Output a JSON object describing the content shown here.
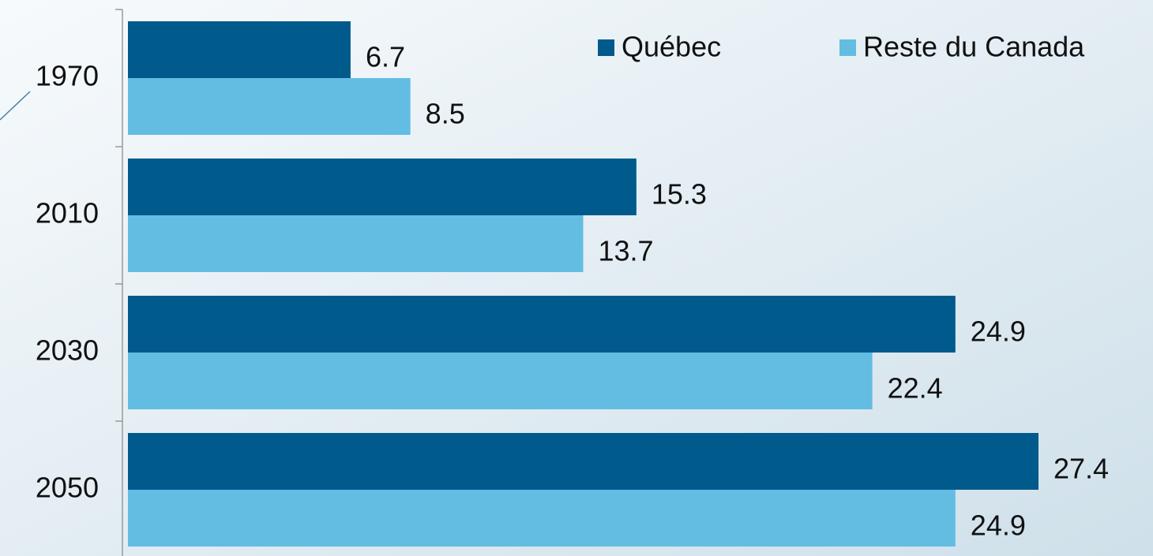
{
  "chart_data": {
    "type": "bar",
    "orientation": "horizontal",
    "categories": [
      "1970",
      "2010",
      "2030",
      "2050"
    ],
    "series": [
      {
        "name": "Québec",
        "color": "#005a8c",
        "values": [
          6.7,
          15.3,
          24.9,
          27.4
        ]
      },
      {
        "name": "Reste du Canada",
        "color": "#63bde3",
        "values": [
          8.5,
          13.7,
          22.4,
          24.9
        ]
      }
    ],
    "legend": "top-right"
  }
}
